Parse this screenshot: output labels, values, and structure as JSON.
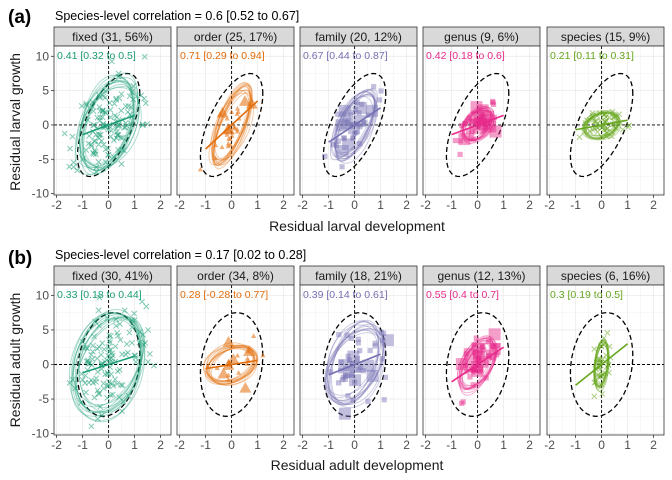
{
  "chart_data": [
    {
      "type": "scatter",
      "panel_label": "(a)",
      "title": "Species-level correlation = 0.6 [0.52 to 0.67]",
      "xlabel": "Residual larval development",
      "ylabel": "Residual larval growth",
      "xlim": [
        -2.1,
        2.4
      ],
      "ylim": [
        -10.2,
        11.5
      ],
      "x_ticks": [
        "-2",
        "-1",
        "0",
        "1",
        "2"
      ],
      "y_ticks": [
        "-10",
        "-5",
        "0",
        "5",
        "10"
      ],
      "grid": true,
      "facets": [
        {
          "strip": "fixed (31, 56%)",
          "corr": "0.41 [0.32 to 0.5]",
          "color": "#1b9e77",
          "rho": 0.41,
          "sx": 0.6,
          "sy": 3.6,
          "slope": 1.4,
          "n": 130,
          "shape": "x"
        },
        {
          "strip": "order (25, 17%)",
          "corr": "0.71 [0.29 to 0.94]",
          "color": "#e36c0a",
          "rho": 0.71,
          "sx": 0.4,
          "sy": 3.0,
          "slope": 3.5,
          "n": 28,
          "shape": "tri"
        },
        {
          "strip": "family (20, 12%)",
          "corr": "0.67 [0.44 to 0.87]",
          "color": "#7570b3",
          "rho": 0.67,
          "sx": 0.45,
          "sy": 2.5,
          "slope": 2.5,
          "n": 40,
          "shape": "sq"
        },
        {
          "strip": "genus (9, 6%)",
          "corr": "0.42 [0.18 to 0.6]",
          "color": "#e7298a",
          "rho": 0.42,
          "sx": 0.32,
          "sy": 1.3,
          "slope": 1.4,
          "n": 50,
          "shape": "sq"
        },
        {
          "strip": "species (15, 9%)",
          "corr": "0.21 [0.11 to 0.31]",
          "color": "#66a61e",
          "rho": 0.21,
          "sx": 0.35,
          "sy": 1.0,
          "slope": 0.7,
          "n": 60,
          "shape": "x"
        }
      ]
    },
    {
      "type": "scatter",
      "panel_label": "(b)",
      "title": "Species-level correlation = 0.17 [0.02 to 0.28]",
      "xlabel": "Residual adult development",
      "ylabel": "Residual adult growth",
      "xlim": [
        -2.1,
        2.4
      ],
      "ylim": [
        -10.2,
        11.5
      ],
      "x_ticks": [
        "-2",
        "-1",
        "0",
        "1",
        "2"
      ],
      "y_ticks": [
        "-10",
        "-5",
        "0",
        "5",
        "10"
      ],
      "grid": true,
      "facets": [
        {
          "strip": "fixed (30, 41%)",
          "corr": "0.33 [0.18 to 0.44]",
          "color": "#1b9e77",
          "rho": 0.33,
          "sx": 0.7,
          "sy": 3.8,
          "slope": 1.2,
          "n": 130,
          "shape": "x"
        },
        {
          "strip": "order (34, 8%)",
          "corr": "0.28 [-0.28 to 0.77]",
          "color": "#e36c0a",
          "rho": 0.28,
          "sx": 0.5,
          "sy": 1.5,
          "slope": 0.6,
          "n": 20,
          "shape": "tri"
        },
        {
          "strip": "family (18, 21%)",
          "corr": "0.39 [0.14 to 0.61]",
          "color": "#7570b3",
          "rho": 0.39,
          "sx": 0.55,
          "sy": 3.0,
          "slope": 1.5,
          "n": 45,
          "shape": "sq"
        },
        {
          "strip": "genus (12, 13%)",
          "corr": "0.55 [0.4 to 0.7]",
          "color": "#e7298a",
          "rho": 0.55,
          "sx": 0.35,
          "sy": 2.0,
          "slope": 2.5,
          "n": 50,
          "shape": "sq"
        },
        {
          "strip": "species (6, 16%)",
          "corr": "0.3 [0.19 to 0.5]",
          "color": "#66a61e",
          "rho": 0.3,
          "sx": 0.15,
          "sy": 1.8,
          "slope": 3.0,
          "n": 40,
          "shape": "x"
        }
      ]
    }
  ]
}
